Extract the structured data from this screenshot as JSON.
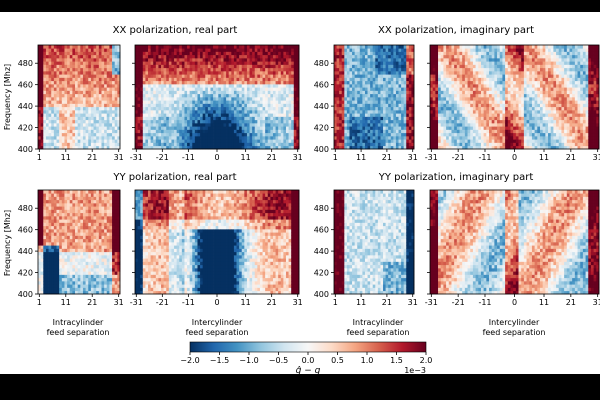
{
  "chart_data": {
    "type": "heatmap",
    "colormap": "RdBu_r",
    "colors": {
      "neg": "#053061",
      "mid": "#f7f7f7",
      "pos": "#67001f"
    },
    "panels": [
      {
        "title": "XX polarization, real part"
      },
      {
        "title": "XX polarization, imaginary part"
      },
      {
        "title": "YY polarization, real part"
      },
      {
        "title": "YY polarization, imaginary part"
      }
    ],
    "ylabel": "Frequency [Mhz]",
    "yticks": [
      "400",
      "420",
      "440",
      "460",
      "480"
    ],
    "ylim": [
      400,
      497
    ],
    "intra": {
      "xlabel_1": "Intracylinder",
      "xlabel_2": "feed separation",
      "xticks": [
        "1",
        "11",
        "21",
        "31"
      ],
      "xlim": [
        1,
        32
      ]
    },
    "inter": {
      "xlabel_1": "Intercylinder",
      "xlabel_2": "feed separation",
      "xticks": [
        "-31",
        "-21",
        "-11",
        "0",
        "11",
        "21",
        "31"
      ],
      "xlim": [
        -31,
        32
      ]
    },
    "colorbar": {
      "ticks": [
        "−2.0",
        "−1.5",
        "−1.0",
        "−0.5",
        "0.0",
        "0.5",
        "1.0",
        "1.5",
        "2.0"
      ],
      "range": [
        -2.0,
        2.0
      ],
      "label": "ĝ − g",
      "multiplier": "1e−3"
    }
  }
}
